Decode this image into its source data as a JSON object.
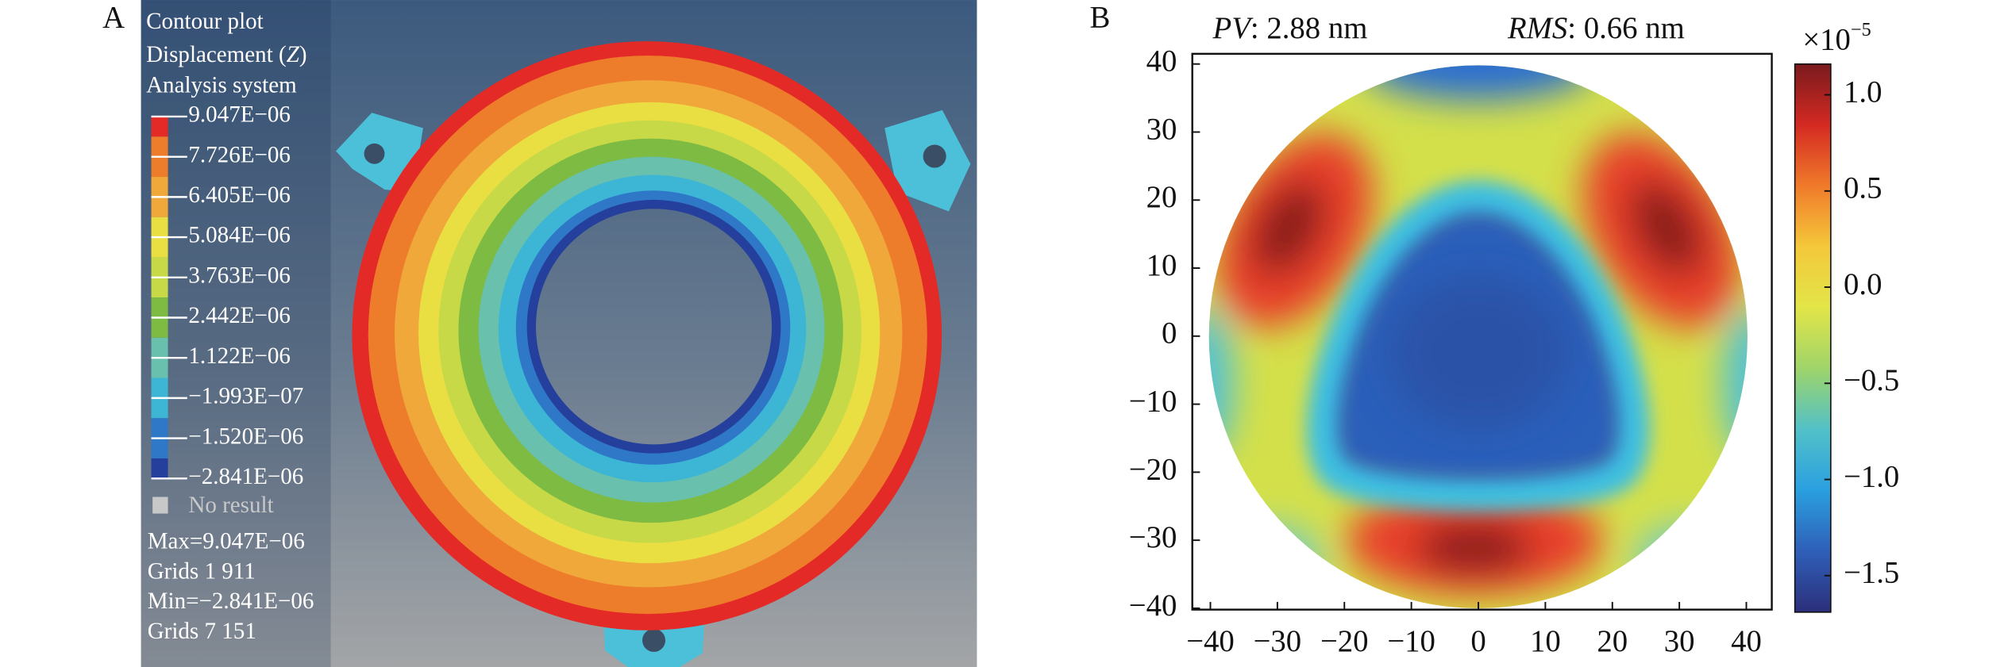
{
  "panel_a": {
    "label": "A",
    "title": "Contour plot",
    "quantity": "Displacement (",
    "quantity_symbol": "Z",
    "quantity_end": ")",
    "system": "Analysis system",
    "legend": [
      {
        "label": "9.047E−06",
        "color": "#e42a26"
      },
      {
        "label": "7.726E−06",
        "color": "#ee7d2b"
      },
      {
        "label": "6.405E−06",
        "color": "#f0a83a"
      },
      {
        "label": "5.084E−06",
        "color": "#e9df43"
      },
      {
        "label": "3.763E−06",
        "color": "#c8d948"
      },
      {
        "label": "2.442E−06",
        "color": "#7dbb42"
      },
      {
        "label": "1.122E−06",
        "color": "#68c0ad"
      },
      {
        "label": "−1.993E−07",
        "color": "#3db6d6"
      },
      {
        "label": "−1.520E−06",
        "color": "#2f78c8"
      },
      {
        "label": "−2.841E−06",
        "color": "#243f9c"
      }
    ],
    "no_result": "No result",
    "no_result_color": "#c8c8c8",
    "stats": [
      "Max=9.047E−06",
      "Grids 1 911",
      "Min=−2.841E−06",
      "Grids 7 151"
    ]
  },
  "chart_data": {
    "type": "heatmap",
    "label": "B",
    "annotations": [
      {
        "name": "PV",
        "text": ": 2.88 nm"
      },
      {
        "name": "RMS",
        "text": ": 0.66 nm"
      }
    ],
    "xlim": [
      -42.7,
      43.8
    ],
    "ylim": [
      -40.2,
      41.5
    ],
    "xticks": [
      {
        "value": -40,
        "label": "−40"
      },
      {
        "value": -30,
        "label": "−30"
      },
      {
        "value": -20,
        "label": "−20"
      },
      {
        "value": -10,
        "label": "−10"
      },
      0,
      10,
      20,
      30,
      40
    ],
    "yticks": [
      {
        "value": -40,
        "label": "−40"
      },
      {
        "value": -30,
        "label": "−30"
      },
      {
        "value": -20,
        "label": "−20"
      },
      {
        "value": -10,
        "label": "−10"
      },
      0,
      10,
      20,
      30,
      40
    ],
    "colorbar": {
      "multiplier_base": "×10",
      "multiplier_exponent": "−5",
      "clim": [
        -1.69,
        1.16
      ],
      "ticks": [
        {
          "value": 1.0,
          "label": "1.0"
        },
        {
          "value": 0.5,
          "label": "0.5"
        },
        {
          "value": 0.0,
          "label": "0.0"
        },
        {
          "value": -0.5,
          "label": "−0.5"
        },
        {
          "value": -1.0,
          "label": "−1.0"
        },
        {
          "value": -1.5,
          "label": "−1.5"
        }
      ],
      "colormap": [
        "#7a1a1e",
        "#d42a22",
        "#f07a2a",
        "#f4c83a",
        "#e2e548",
        "#9fd46a",
        "#52c1c8",
        "#2a9fe0",
        "#2f5fb8",
        "#2b2f7a"
      ]
    }
  }
}
